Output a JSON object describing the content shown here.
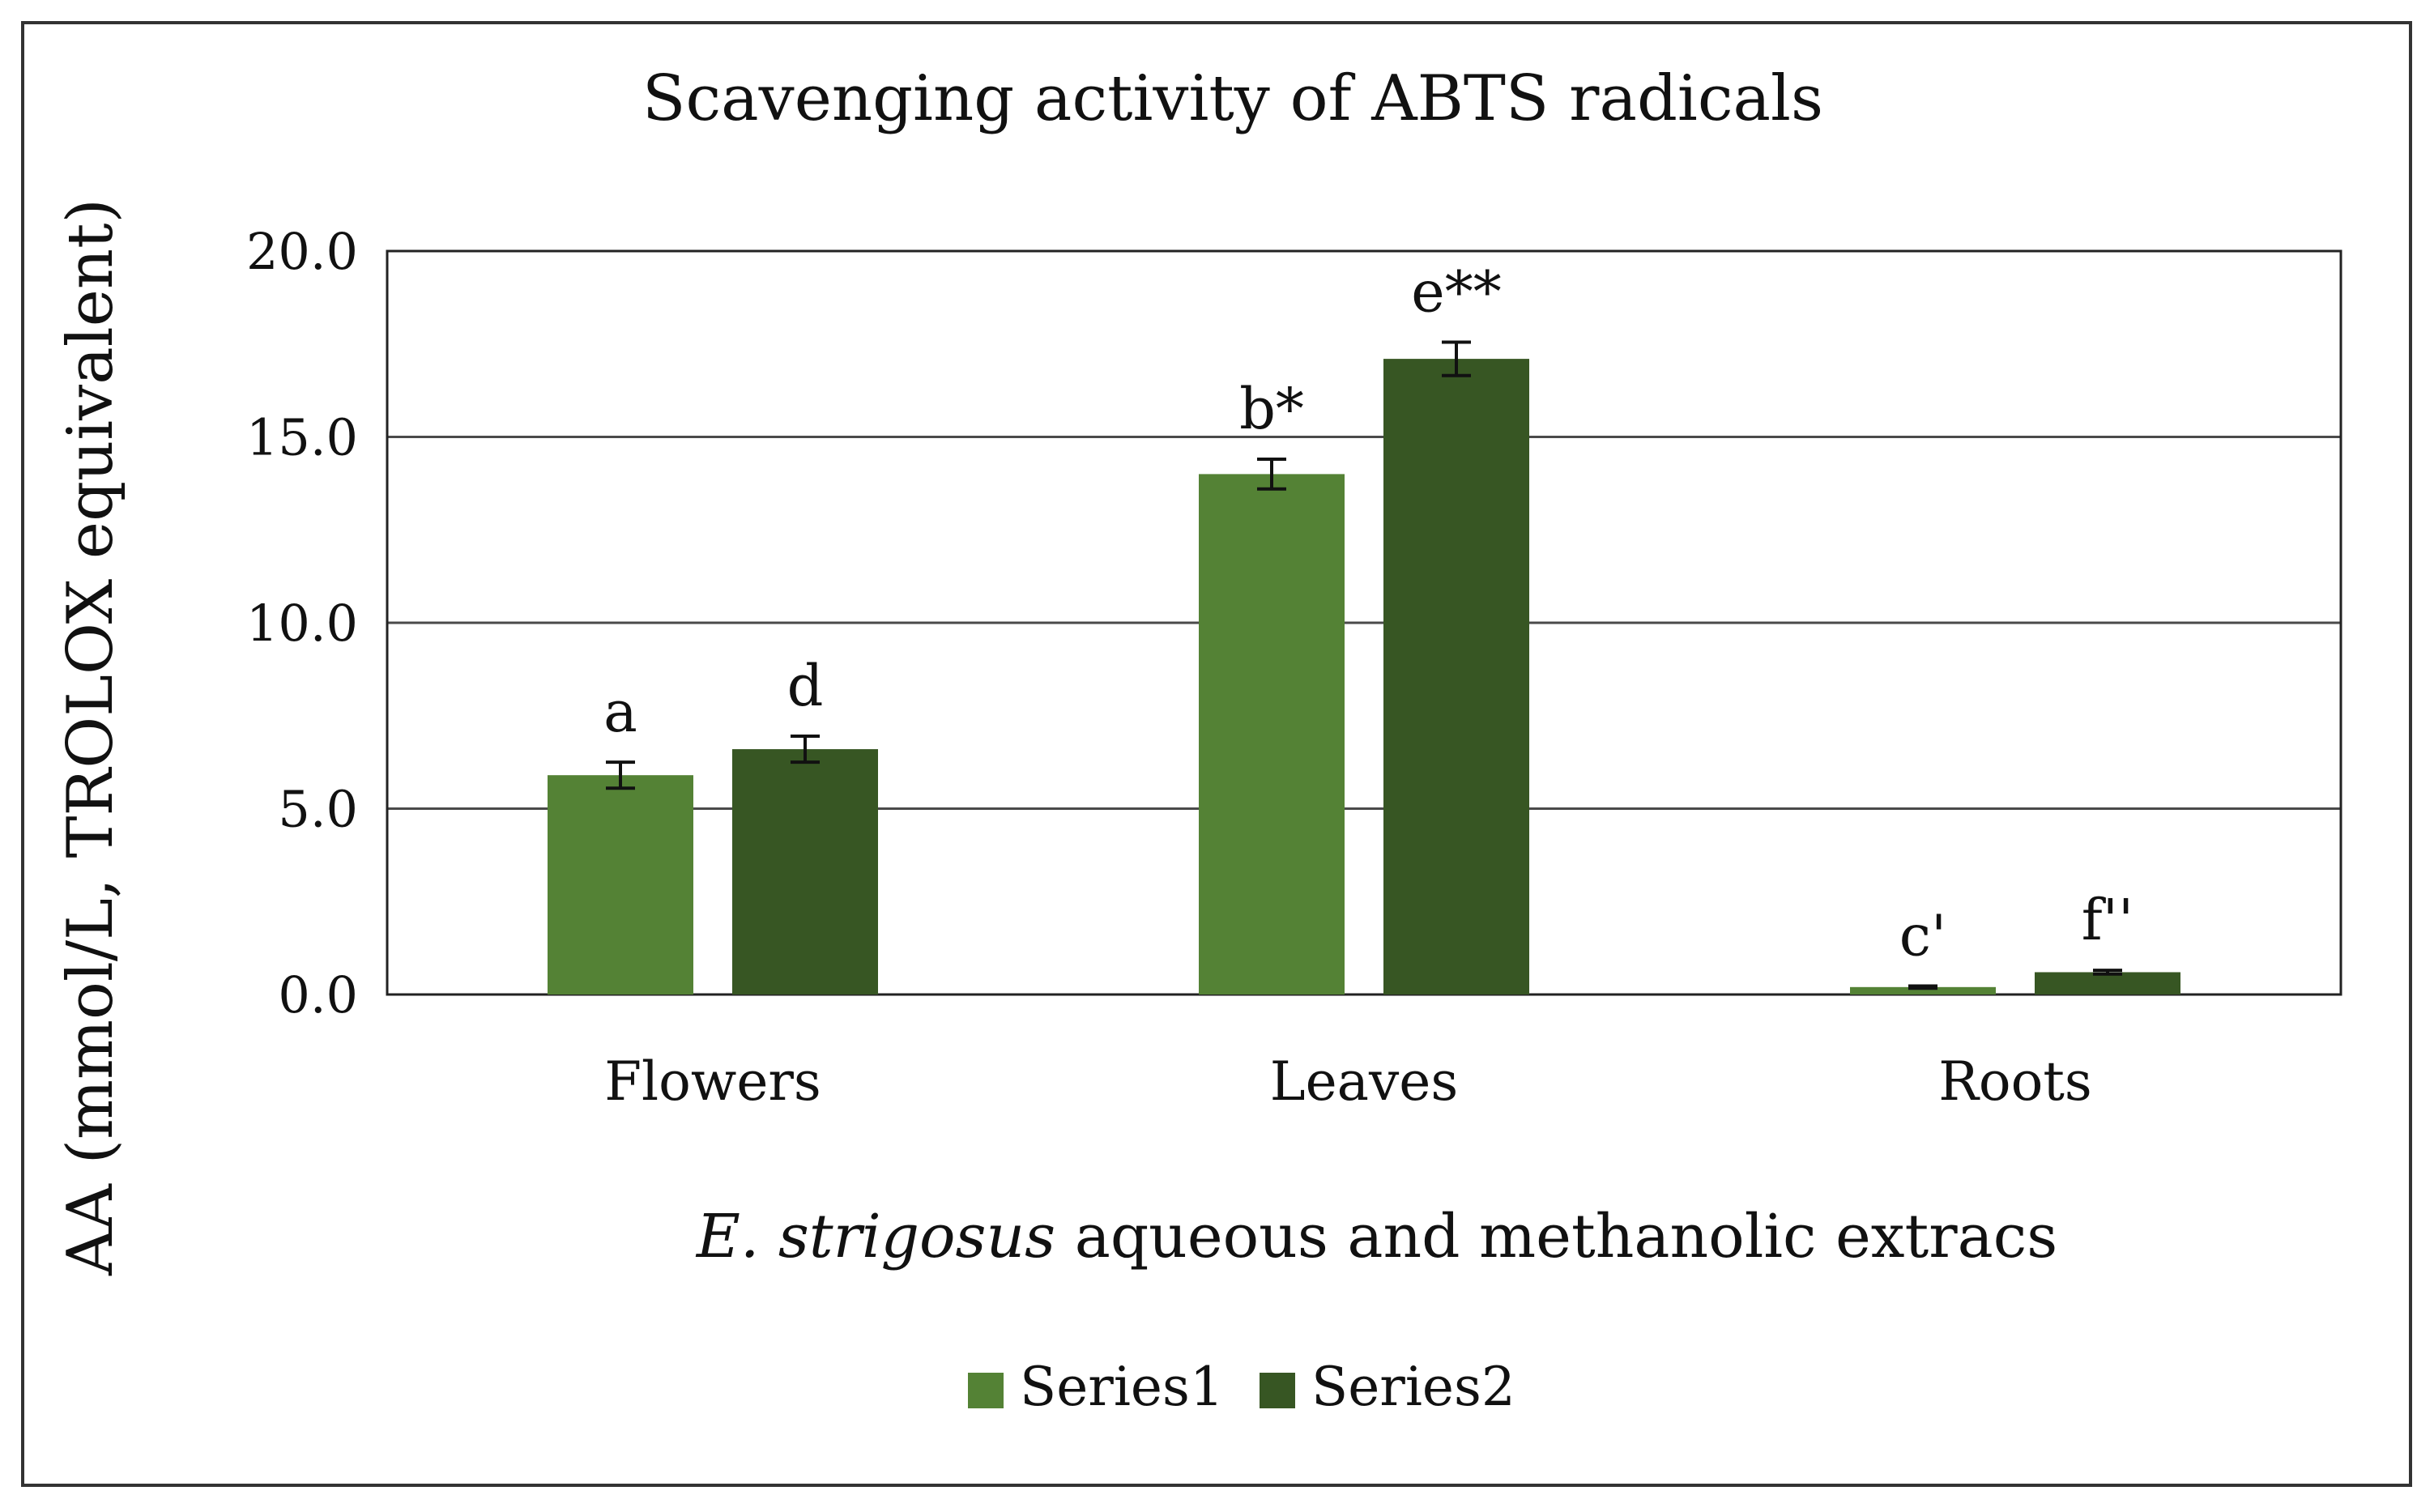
{
  "chart_data": {
    "type": "bar",
    "title": "Scavenging activity of ABTS radicals",
    "xlabel_italic": "E. strigosus",
    "xlabel_rest": " aqueous and methanolic extracs",
    "ylabel": "AA (mmol/L, TROLOX equivalent)",
    "categories": [
      "Flowers",
      "Leaves",
      "Roots"
    ],
    "ylim": [
      0,
      20
    ],
    "yticks": [
      "0.0",
      "5.0",
      "10.0",
      "15.0",
      "20.0"
    ],
    "grid": true,
    "legend_position": "bottom",
    "series": [
      {
        "name": "Series1",
        "color": "#548235",
        "values": [
          5.9,
          14.0,
          0.2
        ],
        "errors": [
          0.35,
          0.4,
          0.03
        ],
        "annotations": [
          "a",
          "b*",
          "c'"
        ]
      },
      {
        "name": "Series2",
        "color": "#375623",
        "values": [
          6.6,
          17.1,
          0.6
        ],
        "errors": [
          0.35,
          0.45,
          0.05
        ],
        "annotations": [
          "d",
          "e**",
          "f''"
        ]
      }
    ]
  }
}
